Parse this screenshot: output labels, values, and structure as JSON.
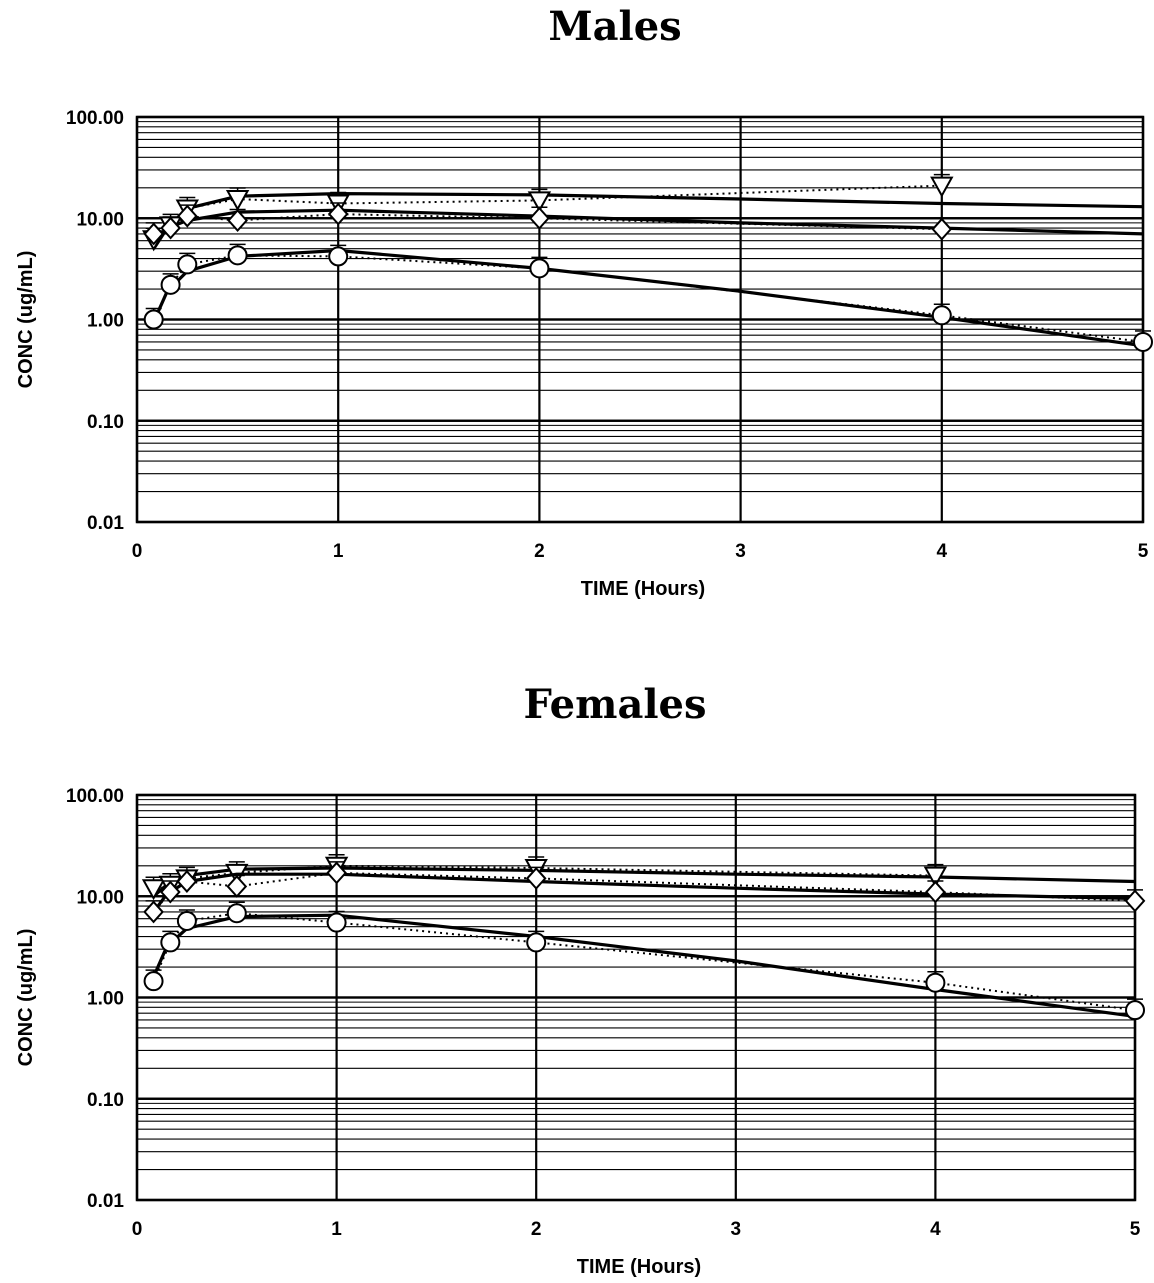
{
  "chart_data": [
    {
      "type": "line",
      "title": "Males",
      "xlabel": "TIME (Hours)",
      "ylabel": "CONC (ug/mL)",
      "xlim": [
        0,
        5
      ],
      "ylim": [
        0.01,
        100
      ],
      "yscale": "log",
      "grid": true,
      "xticks": [
        "0",
        "1",
        "2",
        "3",
        "4",
        "5"
      ],
      "yticks": [
        "100.00",
        "10.00",
        "1.00",
        "0.10",
        "0.01"
      ],
      "series": [
        {
          "marker": "triangle",
          "observed": [
            [
              0.083,
              6.2
            ],
            [
              0.167,
              8.5
            ],
            [
              0.25,
              12.5
            ],
            [
              0.5,
              15.5
            ],
            [
              1,
              14
            ],
            [
              2,
              15
            ],
            [
              4,
              21
            ]
          ],
          "fitted": [
            [
              0.083,
              5
            ],
            [
              0.15,
              8
            ],
            [
              0.25,
              12.5
            ],
            [
              0.5,
              16.5
            ],
            [
              1,
              17.5
            ],
            [
              2,
              17
            ],
            [
              3,
              15.5
            ],
            [
              4,
              14
            ],
            [
              5,
              13
            ]
          ]
        },
        {
          "marker": "diamond",
          "observed": [
            [
              0.083,
              7
            ],
            [
              0.167,
              8
            ],
            [
              0.25,
              10.5
            ],
            [
              0.5,
              9.5
            ],
            [
              1,
              11
            ],
            [
              2,
              10
            ],
            [
              4,
              7.8
            ]
          ],
          "fitted": [
            [
              0.083,
              6
            ],
            [
              0.15,
              8
            ],
            [
              0.25,
              9.5
            ],
            [
              0.5,
              11.5
            ],
            [
              1,
              12
            ],
            [
              2,
              10.5
            ],
            [
              3,
              9
            ],
            [
              4,
              8
            ],
            [
              5,
              7
            ]
          ]
        },
        {
          "marker": "circle",
          "observed": [
            [
              0.083,
              1.0
            ],
            [
              0.167,
              2.2
            ],
            [
              0.25,
              3.5
            ],
            [
              0.5,
              4.3
            ],
            [
              1,
              4.2
            ],
            [
              2,
              3.2
            ],
            [
              4,
              1.1
            ],
            [
              5,
              0.6
            ]
          ],
          "fitted": [
            [
              0.083,
              0.95
            ],
            [
              0.15,
              1.9
            ],
            [
              0.25,
              3.0
            ],
            [
              0.5,
              4.2
            ],
            [
              1,
              4.8
            ],
            [
              2,
              3.2
            ],
            [
              3,
              1.9
            ],
            [
              4,
              1.05
            ],
            [
              5,
              0.55
            ]
          ]
        }
      ]
    },
    {
      "type": "line",
      "title": "Females",
      "xlabel": "TIME (Hours)",
      "ylabel": "CONC (ug/mL)",
      "xlim": [
        0,
        5
      ],
      "ylim": [
        0.01,
        100
      ],
      "yscale": "log",
      "grid": true,
      "xticks": [
        "0",
        "1",
        "2",
        "3",
        "4",
        "5"
      ],
      "yticks": [
        "100.00",
        "10.00",
        "1.00",
        "0.10",
        "0.01"
      ],
      "series": [
        {
          "marker": "triangle",
          "observed": [
            [
              0.083,
              12
            ],
            [
              0.167,
              13
            ],
            [
              0.25,
              15
            ],
            [
              0.5,
              17
            ],
            [
              1,
              20
            ],
            [
              2,
              19
            ],
            [
              4,
              16
            ]
          ],
          "fitted": [
            [
              0.083,
              10
            ],
            [
              0.15,
              13
            ],
            [
              0.25,
              16
            ],
            [
              0.5,
              18.5
            ],
            [
              1,
              19
            ],
            [
              2,
              18
            ],
            [
              3,
              16.5
            ],
            [
              4,
              15.5
            ],
            [
              5,
              14
            ]
          ]
        },
        {
          "marker": "diamond",
          "observed": [
            [
              0.083,
              7
            ],
            [
              0.167,
              11
            ],
            [
              0.25,
              14
            ],
            [
              0.5,
              12.5
            ],
            [
              1,
              17
            ],
            [
              2,
              15
            ],
            [
              4,
              11
            ],
            [
              5,
              9
            ]
          ],
          "fitted": [
            [
              0.083,
              7
            ],
            [
              0.15,
              10.5
            ],
            [
              0.25,
              14
            ],
            [
              0.5,
              16.5
            ],
            [
              1,
              16.5
            ],
            [
              2,
              14
            ],
            [
              3,
              12
            ],
            [
              4,
              10.5
            ],
            [
              5,
              9.5
            ]
          ]
        },
        {
          "marker": "circle",
          "observed": [
            [
              0.083,
              1.45
            ],
            [
              0.167,
              3.5
            ],
            [
              0.25,
              5.7
            ],
            [
              0.5,
              6.8
            ],
            [
              1,
              5.5
            ],
            [
              2,
              3.5
            ],
            [
              4,
              1.4
            ],
            [
              5,
              0.75
            ]
          ],
          "fitted": [
            [
              0.083,
              1.6
            ],
            [
              0.15,
              3.2
            ],
            [
              0.25,
              4.8
            ],
            [
              0.5,
              6.3
            ],
            [
              1,
              6.5
            ],
            [
              2,
              4.0
            ],
            [
              3,
              2.3
            ],
            [
              4,
              1.2
            ],
            [
              5,
              0.65
            ]
          ]
        }
      ]
    }
  ]
}
